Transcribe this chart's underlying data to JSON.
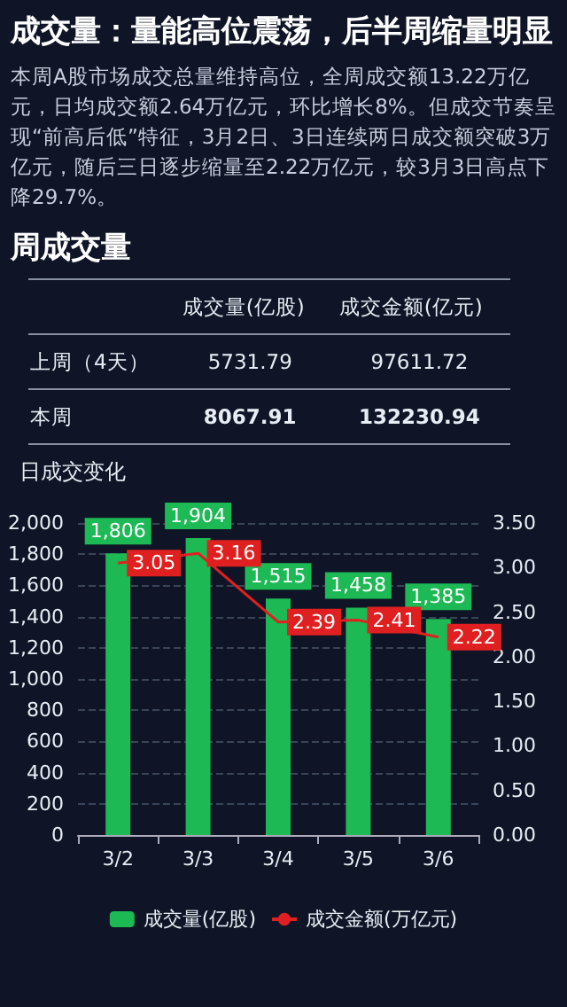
{
  "chart_data": [
    {
      "type": "other",
      "title": "成交量：量能高位震荡，后半周缩量明显",
      "annotations": [
        "本周A股市场成交总量维持高位，全周成交额13.22万亿元，日均成交额2.64万亿元，环比增长8%。但成交节奏呈现“前高后低”特征，3月2日、3日连续两日成交额突破3万亿元，随后三日逐步缩量至2.22万亿元，较3月3日高点下降29.7%。"
      ]
    },
    {
      "type": "heatmap",
      "data_labels": true,
      "title": "周成交量",
      "categories": [
        "成交量(亿股)",
        "成交金额(亿元)"
      ],
      "y_categories": [
        "上周（4天）",
        "本周"
      ],
      "cells": [
        [
          5731.79,
          97611.72
        ],
        [
          8067.91,
          132230.94
        ]
      ]
    },
    {
      "type": "bar",
      "title": "日成交变化",
      "categories": [
        "3/2",
        "3/3",
        "3/4",
        "3/5",
        "3/6"
      ],
      "series": [
        {
          "name": "成交量(亿股)",
          "type": "bar",
          "color": "#1db954",
          "values": [
            1806,
            1904,
            1515,
            1458,
            1385
          ],
          "value_labels": [
            "1,806",
            "1,904",
            "1,515",
            "1,458",
            "1,385"
          ]
        },
        {
          "name": "成交金额(万亿元)",
          "type": "line",
          "axis": "y2",
          "color": "#e02020",
          "values": [
            3.05,
            3.16,
            2.39,
            2.41,
            2.22
          ],
          "value_labels": [
            "3.05",
            "3.16",
            "2.39",
            "2.41",
            "2.22"
          ]
        }
      ],
      "ylim": [
        0,
        2000
      ],
      "yticks": [
        0,
        {
          "value": 200,
          "label": "200"
        },
        {
          "value": 400,
          "label": "400"
        },
        {
          "value": 600,
          "label": "600"
        },
        {
          "value": 800,
          "label": "800"
        },
        {
          "value": 1000,
          "label": "1,000"
        },
        {
          "value": 1200,
          "label": "1,200"
        },
        {
          "value": 1400,
          "label": "1,400"
        },
        {
          "value": 1600,
          "label": "1,600"
        },
        {
          "value": 1800,
          "label": "1,800"
        },
        {
          "value": 2000,
          "label": "2,000"
        }
      ],
      "y2lim": [
        0,
        3.5
      ],
      "y2ticks": [
        {
          "value": 0,
          "label": "0.00"
        },
        {
          "value": 0.5,
          "label": "0.50"
        },
        {
          "value": 1,
          "label": "1.00"
        },
        {
          "value": 1.5,
          "label": "1.50"
        },
        {
          "value": 2,
          "label": "2.00"
        },
        {
          "value": 2.5,
          "label": "2.50"
        },
        {
          "value": 3,
          "label": "3.00"
        },
        {
          "value": 3.5,
          "label": "3.50"
        }
      ],
      "grid": "y",
      "legend": "bottom",
      "marker": "none"
    }
  ]
}
